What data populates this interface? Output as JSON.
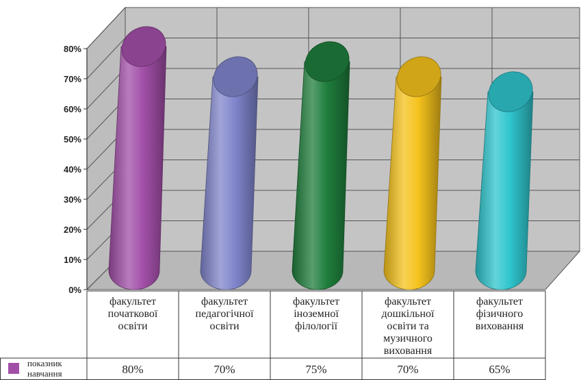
{
  "chart_data": {
    "type": "bar",
    "style": "3d-cylinder",
    "categories": [
      [
        "факультет",
        "початкової",
        "освіти"
      ],
      [
        "факультет",
        "педагогічної",
        "освіти"
      ],
      [
        "факультет",
        "іноземної",
        "філології"
      ],
      [
        "факультет",
        "дошкільної",
        "освіти та",
        "музичного",
        "виховання"
      ],
      [
        "факультет",
        "фізичного",
        "виховання"
      ]
    ],
    "series": [
      {
        "name": "показник навчання",
        "values": [
          80,
          70,
          75,
          70,
          65
        ]
      }
    ],
    "data_labels": [
      "80%",
      "70%",
      "75%",
      "70%",
      "65%"
    ],
    "y_ticks": [
      "0%",
      "10%",
      "20%",
      "30%",
      "40%",
      "50%",
      "60%",
      "70%",
      "80%"
    ],
    "ylim": [
      0,
      80
    ],
    "grid": true,
    "legend_placement": "data-table-left",
    "legend": [
      "показник",
      "навчання"
    ],
    "colors": [
      "#a24fa8",
      "#8085cc",
      "#1f7e3c",
      "#f5c21c",
      "#2fc5cd"
    ],
    "wall_color": "#c4c4c4",
    "floor_color": "#b8b8b8"
  }
}
